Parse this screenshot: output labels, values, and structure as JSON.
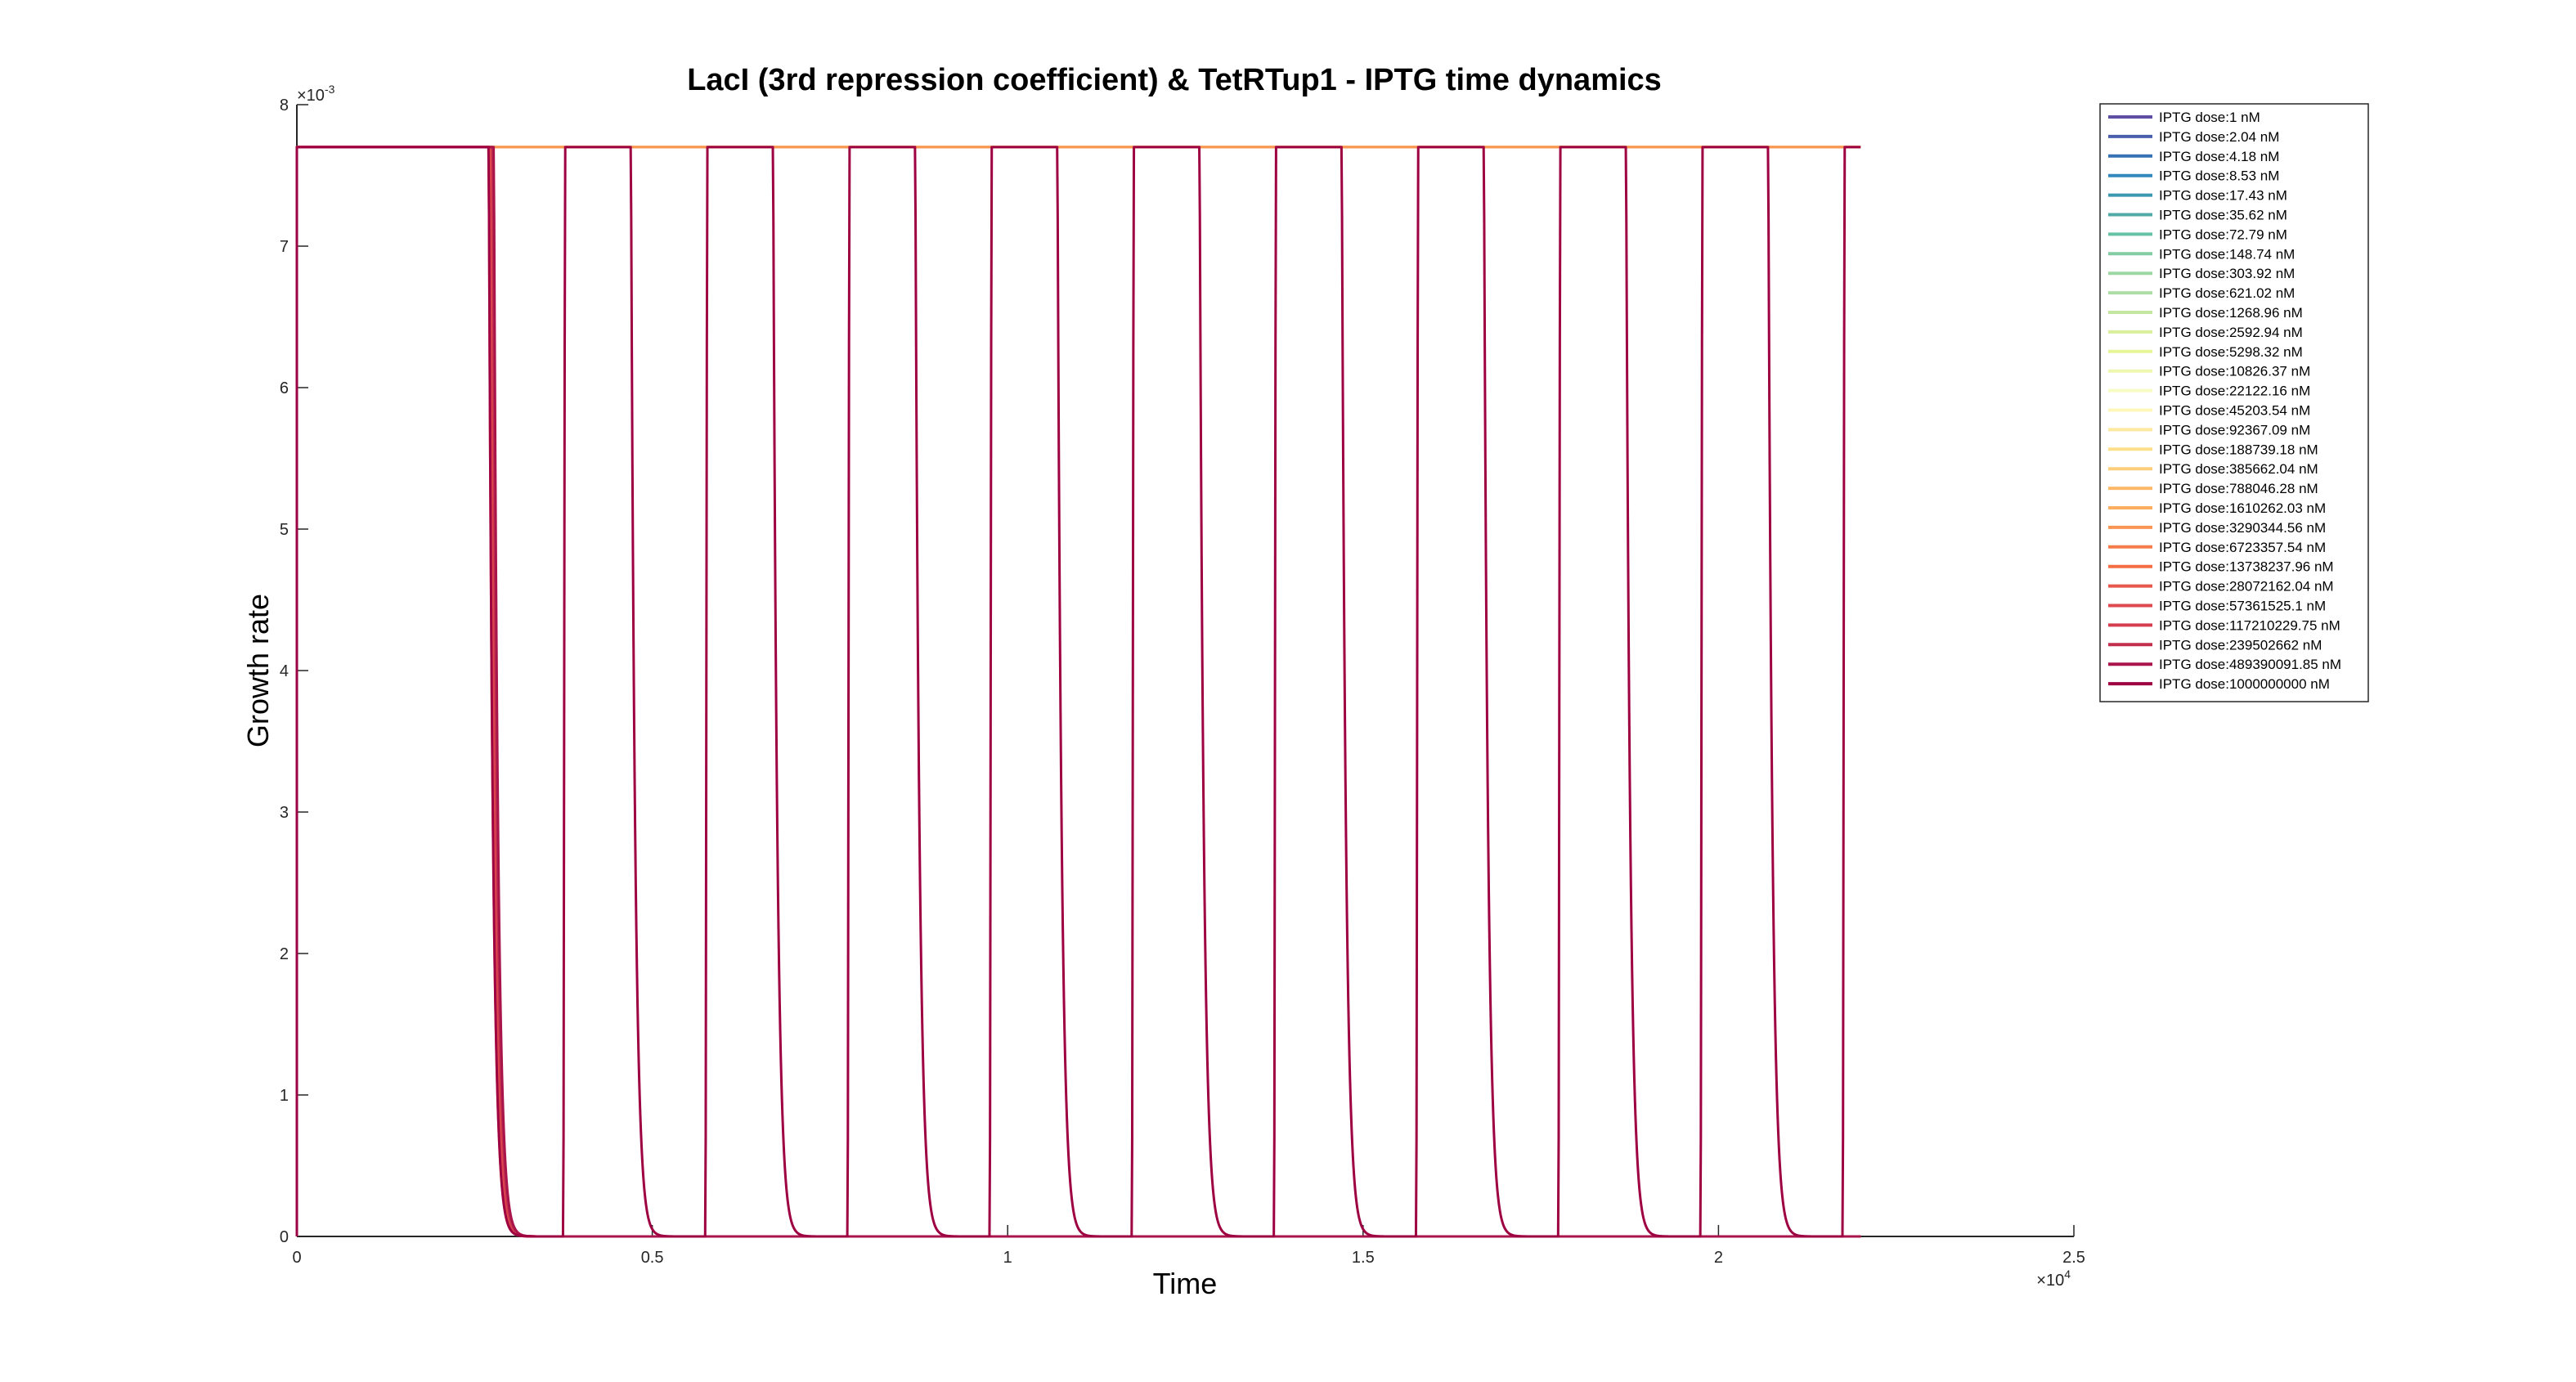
{
  "chart_data": {
    "type": "line",
    "title": "LacI (3rd repression coefficient) & TetRTup1 - IPTG time dynamics",
    "xlabel": "Time",
    "ylabel": "Growth rate",
    "xlim": [
      0,
      25000
    ],
    "ylim": [
      0,
      0.008
    ],
    "x_multiplier_label": "×10",
    "x_multiplier_exp": "4",
    "y_multiplier_label": "×10",
    "y_multiplier_exp": "-3",
    "x_ticks": [
      0,
      5000,
      10000,
      15000,
      20000,
      25000
    ],
    "x_tick_labels": [
      "0",
      "0.5",
      "1",
      "1.5",
      "2",
      "2.5"
    ],
    "y_ticks": [
      0,
      0.001,
      0.002,
      0.003,
      0.004,
      0.005,
      0.006,
      0.007,
      0.008
    ],
    "y_tick_labels": [
      "0",
      "1",
      "2",
      "3",
      "4",
      "5",
      "6",
      "7",
      "8"
    ],
    "grid": false,
    "legend_position": "top-right",
    "max_growth_rate": 0.0077,
    "sim_end_time": 22000,
    "drop_time": 2700,
    "oscillation_down_times": [
      2700,
      4700,
      6700,
      8700,
      10700,
      12700,
      14700,
      16700,
      18700,
      20700
    ],
    "oscillation_up_times": [
      3750,
      5750,
      7750,
      9750,
      11750,
      13750,
      15750,
      17750,
      19750,
      21750
    ],
    "series": [
      {
        "name": "IPTG dose:1 nM",
        "color": "#5e4fa2"
      },
      {
        "name": "IPTG dose:2.04 nM",
        "color": "#4a5fab"
      },
      {
        "name": "IPTG dose:4.18 nM",
        "color": "#3671b4"
      },
      {
        "name": "IPTG dose:8.53 nM",
        "color": "#3288bd"
      },
      {
        "name": "IPTG dose:17.43 nM",
        "color": "#3a98b0"
      },
      {
        "name": "IPTG dose:35.62 nM",
        "color": "#50aba6"
      },
      {
        "name": "IPTG dose:72.79 nM",
        "color": "#66c2a5"
      },
      {
        "name": "IPTG dose:148.74 nM",
        "color": "#82cca4"
      },
      {
        "name": "IPTG dose:303.92 nM",
        "color": "#9dd7a4"
      },
      {
        "name": "IPTG dose:621.02 nM",
        "color": "#abdda4"
      },
      {
        "name": "IPTG dose:1268.96 nM",
        "color": "#c3e6a0"
      },
      {
        "name": "IPTG dose:2592.94 nM",
        "color": "#d9ef9b"
      },
      {
        "name": "IPTG dose:5298.32 nM",
        "color": "#e6f598"
      },
      {
        "name": "IPTG dose:10826.37 nM",
        "color": "#eff8b1"
      },
      {
        "name": "IPTG dose:22122.16 nM",
        "color": "#f7fbc4"
      },
      {
        "name": "IPTG dose:45203.54 nM",
        "color": "#fef7bb"
      },
      {
        "name": "IPTG dose:92367.09 nM",
        "color": "#fee9a0"
      },
      {
        "name": "IPTG dose:188739.18 nM",
        "color": "#fee08b"
      },
      {
        "name": "IPTG dose:385662.04 nM",
        "color": "#fdce7b"
      },
      {
        "name": "IPTG dose:788046.28 nM",
        "color": "#fdb86a"
      },
      {
        "name": "IPTG dose:1610262.03 nM",
        "color": "#fdae61"
      },
      {
        "name": "IPTG dose:3290344.56 nM",
        "color": "#f99555"
      },
      {
        "name": "IPTG dose:6723357.54 nM",
        "color": "#f47c4a"
      },
      {
        "name": "IPTG dose:13738237.96 nM",
        "color": "#f46d43"
      },
      {
        "name": "IPTG dose:28072162.04 nM",
        "color": "#e8574b"
      },
      {
        "name": "IPTG dose:57361525.1 nM",
        "color": "#de4a4e"
      },
      {
        "name": "IPTG dose:117210229.75 nM",
        "color": "#d53e4f"
      },
      {
        "name": "IPTG dose:239502662 nM",
        "color": "#c22f4d"
      },
      {
        "name": "IPTG dose:489390091.85 nM",
        "color": "#a9144b"
      },
      {
        "name": "IPTG dose:1000000000 nM",
        "color": "#9e0142"
      }
    ]
  }
}
